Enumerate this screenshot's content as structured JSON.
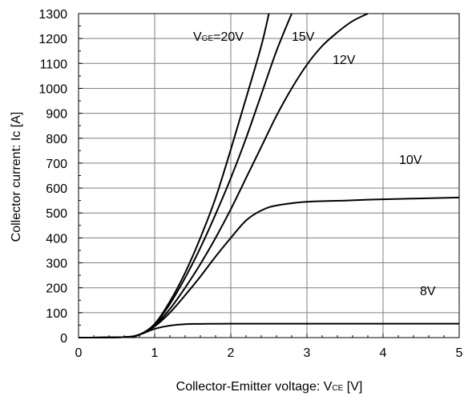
{
  "chart_data": {
    "type": "line",
    "xlabel_main": "Collector-Emitter voltage: V",
    "xlabel_sub": "CE",
    "xlabel_unit": " [V]",
    "ylabel": "Collector current: Ic [A]",
    "xlim": [
      0,
      5
    ],
    "ylim": [
      0,
      1300
    ],
    "x_ticks": [
      "0",
      "1",
      "2",
      "3",
      "4",
      "5"
    ],
    "y_ticks": [
      "0",
      "100",
      "200",
      "300",
      "400",
      "500",
      "600",
      "700",
      "800",
      "900",
      "1000",
      "1100",
      "1200",
      "1300"
    ],
    "grid": true,
    "line_color": "#000000",
    "series": [
      {
        "name": "V_GE=20V",
        "label_main": "V",
        "label_sub": "GE",
        "label_tail": "=20V",
        "points": [
          [
            0,
            0
          ],
          [
            0.6,
            2
          ],
          [
            0.8,
            12
          ],
          [
            1.0,
            55
          ],
          [
            1.2,
            145
          ],
          [
            1.4,
            260
          ],
          [
            1.6,
            400
          ],
          [
            1.8,
            560
          ],
          [
            2.0,
            755
          ],
          [
            2.2,
            960
          ],
          [
            2.4,
            1170
          ],
          [
            2.5,
            1300
          ]
        ]
      },
      {
        "name": "15V",
        "label_main": "15V",
        "points": [
          [
            0,
            0
          ],
          [
            0.6,
            2
          ],
          [
            0.8,
            12
          ],
          [
            1.0,
            52
          ],
          [
            1.2,
            135
          ],
          [
            1.4,
            240
          ],
          [
            1.6,
            360
          ],
          [
            1.8,
            495
          ],
          [
            2.0,
            640
          ],
          [
            2.2,
            800
          ],
          [
            2.4,
            975
          ],
          [
            2.6,
            1150
          ],
          [
            2.8,
            1300
          ]
        ]
      },
      {
        "name": "12V",
        "label_main": "12V",
        "points": [
          [
            0,
            0
          ],
          [
            0.6,
            2
          ],
          [
            0.8,
            12
          ],
          [
            1.0,
            48
          ],
          [
            1.2,
            115
          ],
          [
            1.4,
            200
          ],
          [
            1.6,
            295
          ],
          [
            1.8,
            400
          ],
          [
            2.0,
            515
          ],
          [
            2.2,
            640
          ],
          [
            2.4,
            765
          ],
          [
            2.6,
            890
          ],
          [
            2.8,
            1000
          ],
          [
            3.0,
            1095
          ],
          [
            3.2,
            1170
          ],
          [
            3.4,
            1225
          ],
          [
            3.6,
            1270
          ],
          [
            3.8,
            1300
          ]
        ]
      },
      {
        "name": "10V",
        "label_main": "10V",
        "points": [
          [
            0,
            0
          ],
          [
            0.6,
            2
          ],
          [
            0.8,
            12
          ],
          [
            1.0,
            45
          ],
          [
            1.2,
            100
          ],
          [
            1.4,
            170
          ],
          [
            1.6,
            245
          ],
          [
            1.8,
            325
          ],
          [
            2.0,
            400
          ],
          [
            2.2,
            470
          ],
          [
            2.4,
            510
          ],
          [
            2.6,
            530
          ],
          [
            3.0,
            545
          ],
          [
            3.5,
            550
          ],
          [
            4.0,
            555
          ],
          [
            5.0,
            562
          ]
        ]
      },
      {
        "name": "8V",
        "label_main": "8V",
        "points": [
          [
            0,
            0
          ],
          [
            0.6,
            2
          ],
          [
            0.8,
            12
          ],
          [
            1.0,
            35
          ],
          [
            1.2,
            48
          ],
          [
            1.4,
            54
          ],
          [
            1.6,
            55
          ],
          [
            2.0,
            56
          ],
          [
            3.0,
            56
          ],
          [
            4.0,
            56
          ],
          [
            5.0,
            56
          ]
        ]
      }
    ]
  }
}
